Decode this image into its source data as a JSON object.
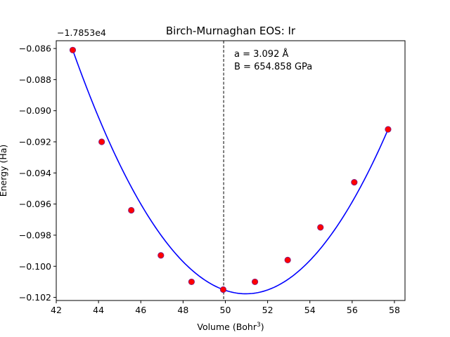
{
  "chart_data": {
    "type": "scatter",
    "title": "Birch-Murnaghan EOS: Ir",
    "xlabel_base": "Volume (Bohr",
    "xlabel_sup": "3",
    "xlabel_close": ")",
    "ylabel": "Energy (Ha)",
    "offset_label": "−1.7853e4",
    "annotation_lines": [
      "a = 3.092 Å",
      "B = 654.858 GPa"
    ],
    "xlim": [
      42,
      58.5
    ],
    "ylim": [
      -0.1022,
      -0.0855
    ],
    "xticks": [
      42,
      44,
      46,
      48,
      50,
      52,
      54,
      56,
      58
    ],
    "yticks": [
      -0.086,
      -0.088,
      -0.09,
      -0.092,
      -0.094,
      -0.096,
      -0.098,
      -0.1,
      -0.102
    ],
    "ytick_labels": [
      "−0.086",
      "−0.088",
      "−0.090",
      "−0.092",
      "−0.094",
      "−0.096",
      "−0.098",
      "−0.100",
      "−0.102"
    ],
    "points": {
      "x": [
        42.78,
        44.15,
        45.55,
        46.95,
        48.4,
        49.9,
        51.4,
        52.95,
        54.5,
        56.1,
        57.7
      ],
      "y": [
        -0.0861,
        -0.092,
        -0.0964,
        -0.0993,
        -0.101,
        -0.1015,
        -0.101,
        -0.0996,
        -0.0975,
        -0.0946,
        -0.0912
      ],
      "color": "#ff0000"
    },
    "fit_curve": {
      "color": "#0000ff"
    },
    "equilibrium_volume": 49.92,
    "vline_color": "#000000"
  }
}
